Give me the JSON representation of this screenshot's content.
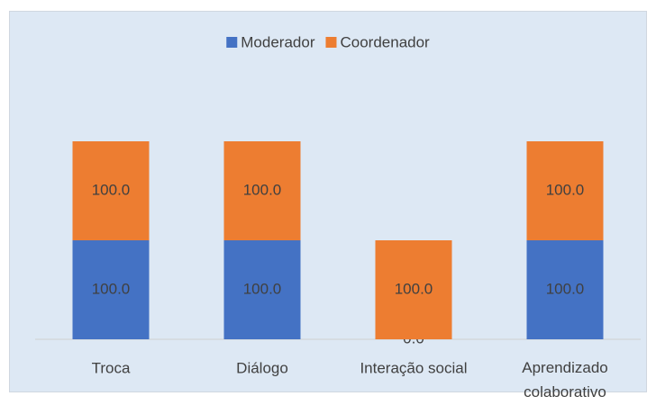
{
  "chart_data": {
    "type": "stacked_bar",
    "categories": [
      "Troca",
      "Diálogo",
      "Interação social",
      "Aprendizado colaborativo"
    ],
    "series": [
      {
        "name": "Moderador",
        "color": "#4472c4",
        "values": [
          100,
          100,
          0,
          100
        ],
        "value_labels": [
          "100.0",
          "100.0",
          "0.0",
          "100.0"
        ]
      },
      {
        "name": "Coordenador",
        "color": "#ed7d31",
        "values": [
          100,
          100,
          100,
          100
        ],
        "value_labels": [
          "100.0",
          "100.0",
          "100.0",
          "100.0"
        ]
      }
    ],
    "ylim": [
      0,
      300
    ],
    "legend": "top"
  }
}
